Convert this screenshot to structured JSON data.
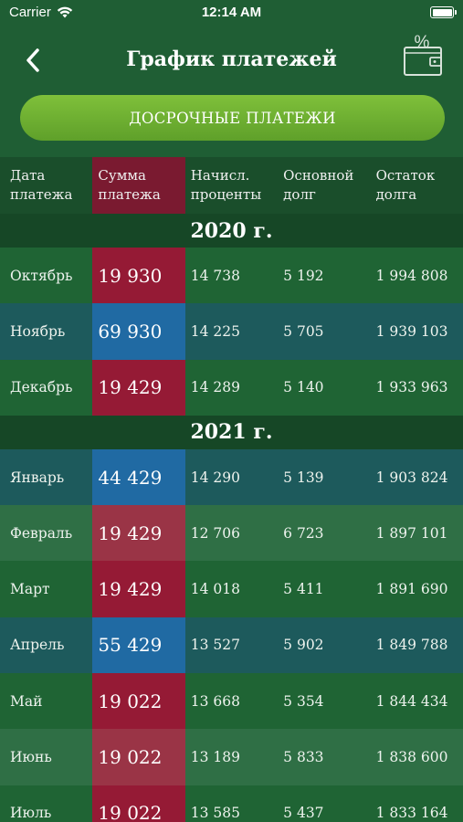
{
  "status_bar": {
    "carrier": "Carrier",
    "time": "12:14 AM"
  },
  "nav": {
    "title": "График платежей",
    "wallet_icon_label": "%"
  },
  "early_payments_label": "ДОСРОЧНЫЕ ПЛАТЕЖИ",
  "table": {
    "headers": [
      "Дата\nплатежа",
      "Сумма\nплатежа",
      "Начисл.\nпроценты",
      "Основной\nдолг",
      "Остаток\nдолга"
    ],
    "header_lines": [
      [
        "Дата",
        "платежа"
      ],
      [
        "Сумма",
        "платежа"
      ],
      [
        "Начисл.",
        "проценты"
      ],
      [
        "Основной",
        "долг"
      ],
      [
        "Остаток",
        "долга"
      ]
    ],
    "years": [
      {
        "label": "2020 г.",
        "rows": [
          {
            "month": "Октябрь",
            "sum": "19 930",
            "interest": "14 738",
            "principal": "5 192",
            "balance": "1 994 808",
            "style": "green",
            "sum_style": "red"
          },
          {
            "month": "Ноябрь",
            "sum": "69 930",
            "interest": "14 225",
            "principal": "5 705",
            "balance": "1 939 103",
            "style": "blue",
            "sum_style": "blue"
          },
          {
            "month": "Декабрь",
            "sum": "19 429",
            "interest": "14 289",
            "principal": "5 140",
            "balance": "1 933 963",
            "style": "green",
            "sum_style": "red"
          }
        ]
      },
      {
        "label": "2021 г.",
        "rows": [
          {
            "month": "Январь",
            "sum": "44 429",
            "interest": "14 290",
            "principal": "5 139",
            "balance": "1 903 824",
            "style": "blue",
            "sum_style": "blue"
          },
          {
            "month": "Февраль",
            "sum": "19 429",
            "interest": "12 706",
            "principal": "6 723",
            "balance": "1 897 101",
            "style": "light",
            "sum_style": "red-light"
          },
          {
            "month": "Март",
            "sum": "19 429",
            "interest": "14 018",
            "principal": "5 411",
            "balance": "1 891 690",
            "style": "green",
            "sum_style": "red"
          },
          {
            "month": "Апрель",
            "sum": "55 429",
            "interest": "13 527",
            "principal": "5 902",
            "balance": "1 849 788",
            "style": "blue",
            "sum_style": "blue"
          },
          {
            "month": "Май",
            "sum": "19 022",
            "interest": "13 668",
            "principal": "5 354",
            "balance": "1 844 434",
            "style": "green",
            "sum_style": "red"
          },
          {
            "month": "Июнь",
            "sum": "19 022",
            "interest": "13 189",
            "principal": "5 833",
            "balance": "1 838 600",
            "style": "light",
            "sum_style": "red-light"
          },
          {
            "month": "Июль",
            "sum": "19 022",
            "interest": "13 585",
            "principal": "5 437",
            "balance": "1 833 164",
            "style": "green",
            "sum_style": "red"
          }
        ]
      }
    ]
  },
  "colors": {
    "background": "#1f5e34",
    "button": "#6cb032",
    "sum_red": "#951a35",
    "sum_blue": "#206aa3",
    "row_blue": "#1d5a5c"
  }
}
